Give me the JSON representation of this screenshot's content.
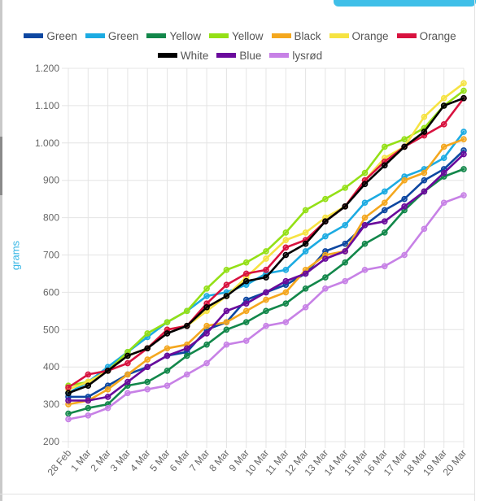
{
  "chart_data": {
    "type": "line",
    "title": "",
    "xlabel": "",
    "ylabel": "grams",
    "ylim": [
      200,
      1200
    ],
    "y_ticks": [
      "200",
      "300",
      "400",
      "500",
      "600",
      "700",
      "800",
      "900",
      "1.000",
      "1.100",
      "1.200"
    ],
    "categories": [
      "28 Feb",
      "1 Mar",
      "2 Mar",
      "3 Mar",
      "4 Mar",
      "5 Mar",
      "6 Mar",
      "7 Mar",
      "8 Mar",
      "9 Mar",
      "10 Mar",
      "11 Mar",
      "12 Mar",
      "13 Mar",
      "14 Mar",
      "15 Mar",
      "16 Mar",
      "17 Mar",
      "18 Mar",
      "19 Mar",
      "20 Mar"
    ],
    "grid": true,
    "legend_position": "top",
    "series": [
      {
        "name": "Green",
        "color": "#0d47a1",
        "values": [
          320,
          320,
          350,
          380,
          400,
          430,
          440,
          500,
          520,
          580,
          600,
          620,
          650,
          710,
          730,
          780,
          820,
          850,
          900,
          930,
          980
        ]
      },
      {
        "name": "Green",
        "color": "#1cabe2",
        "values": [
          330,
          360,
          400,
          440,
          480,
          520,
          550,
          590,
          600,
          620,
          650,
          660,
          710,
          750,
          780,
          840,
          870,
          910,
          930,
          960,
          1030
        ]
      },
      {
        "name": "Yellow",
        "color": "#12874a",
        "values": [
          275,
          290,
          300,
          350,
          360,
          390,
          430,
          460,
          500,
          520,
          550,
          570,
          610,
          640,
          680,
          730,
          760,
          820,
          870,
          910,
          930
        ]
      },
      {
        "name": "Yellow",
        "color": "#94e016",
        "values": [
          350,
          360,
          390,
          440,
          490,
          520,
          550,
          610,
          660,
          680,
          710,
          760,
          820,
          850,
          880,
          920,
          990,
          1010,
          1040,
          1100,
          1140
        ]
      },
      {
        "name": "Black",
        "color": "#f4a71e",
        "values": [
          300,
          310,
          340,
          380,
          420,
          450,
          460,
          510,
          520,
          550,
          580,
          600,
          660,
          700,
          710,
          800,
          840,
          900,
          920,
          990,
          1010
        ]
      },
      {
        "name": "Orange",
        "color": "#f6e342",
        "values": [
          340,
          360,
          390,
          430,
          450,
          500,
          510,
          550,
          590,
          640,
          690,
          740,
          760,
          800,
          830,
          900,
          960,
          990,
          1070,
          1120,
          1160
        ]
      },
      {
        "name": "Orange",
        "color": "#d8123f",
        "values": [
          345,
          380,
          390,
          410,
          450,
          500,
          510,
          570,
          620,
          650,
          660,
          720,
          740,
          790,
          830,
          900,
          950,
          990,
          1020,
          1050,
          1120
        ]
      },
      {
        "name": "White",
        "color": "#000000",
        "values": [
          330,
          350,
          390,
          430,
          450,
          490,
          510,
          560,
          590,
          630,
          640,
          700,
          730,
          790,
          830,
          890,
          940,
          990,
          1030,
          1100,
          1120
        ]
      },
      {
        "name": "Blue",
        "color": "#6a0a9c",
        "values": [
          310,
          310,
          320,
          360,
          400,
          430,
          450,
          490,
          550,
          570,
          600,
          630,
          650,
          690,
          710,
          780,
          790,
          830,
          870,
          920,
          970
        ]
      },
      {
        "name": "lysrød",
        "color": "#c781e6",
        "values": [
          260,
          270,
          290,
          330,
          340,
          350,
          380,
          410,
          460,
          470,
          510,
          520,
          560,
          610,
          630,
          660,
          670,
          700,
          770,
          840,
          860
        ]
      }
    ]
  }
}
